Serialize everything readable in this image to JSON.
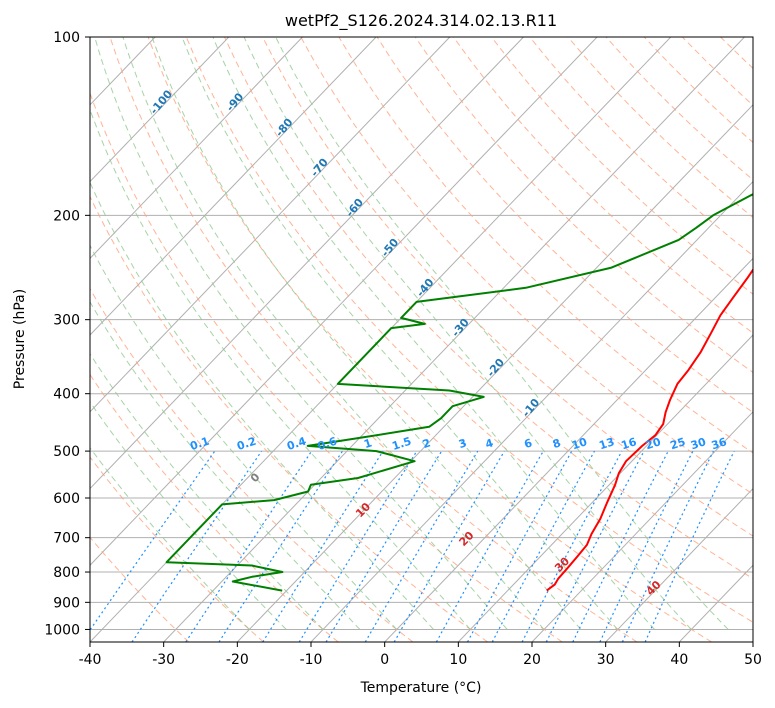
{
  "chart_data": {
    "type": "line",
    "title": "wetPf2_S126.2024.314.02.13.R11",
    "xlabel": "Temperature (°C)",
    "ylabel": "Pressure (hPa)",
    "xlim": [
      -40,
      50
    ],
    "ylim": [
      1050,
      100
    ],
    "y_scale": "log",
    "grid": true,
    "x_ticks": [
      "-40",
      "-30",
      "-20",
      "-10",
      "0",
      "10",
      "20",
      "30",
      "40",
      "50"
    ],
    "y_ticks": [
      "100",
      "200",
      "300",
      "400",
      "500",
      "600",
      "700",
      "800",
      "900",
      "1000"
    ],
    "series": [
      {
        "role": "temperature",
        "color": "#ff0000",
        "points": [
          [
            15.3,
            860
          ],
          [
            15.6,
            840
          ],
          [
            15.3,
            820
          ],
          [
            15.2,
            790
          ],
          [
            15.0,
            750
          ],
          [
            14.8,
            720
          ],
          [
            14.0,
            690
          ],
          [
            13.2,
            650
          ],
          [
            12.0,
            610
          ],
          [
            10.8,
            570
          ],
          [
            9.8,
            545
          ],
          [
            9.2,
            520
          ],
          [
            9.4,
            490
          ],
          [
            9.8,
            470
          ],
          [
            9.4,
            450
          ],
          [
            8.2,
            430
          ],
          [
            7.2,
            410
          ],
          [
            6.1,
            385
          ],
          [
            5.8,
            365
          ],
          [
            5.1,
            340
          ],
          [
            4.0,
            315
          ],
          [
            3.0,
            295
          ],
          [
            2.4,
            275
          ],
          [
            1.8,
            255
          ],
          [
            1.2,
            240
          ],
          [
            1.8,
            228
          ],
          [
            3.0,
            215
          ],
          [
            5.0,
            200
          ],
          [
            6.8,
            185
          ],
          [
            8.6,
            170
          ],
          [
            10.2,
            157
          ],
          [
            11.3,
            146
          ],
          [
            11.9,
            135
          ],
          [
            12.3,
            126
          ],
          [
            13.2,
            118
          ],
          [
            15.0,
            110
          ],
          [
            17.0,
            100
          ]
        ]
      },
      {
        "role": "dewpoint",
        "color": "#008000",
        "points": [
          [
            -20.6,
            860
          ],
          [
            -28.5,
            830
          ],
          [
            -26.5,
            815
          ],
          [
            -23.0,
            800
          ],
          [
            -28.0,
            780
          ],
          [
            -40.0,
            770
          ],
          [
            -40.0,
            615
          ],
          [
            -33.5,
            605
          ],
          [
            -30.0,
            585
          ],
          [
            -30.5,
            570
          ],
          [
            -25.0,
            555
          ],
          [
            -19.5,
            520
          ],
          [
            -26.0,
            500
          ],
          [
            -36.0,
            490
          ],
          [
            -30.0,
            475
          ],
          [
            -22.0,
            455
          ],
          [
            -21.5,
            440
          ],
          [
            -21.5,
            420
          ],
          [
            -18.5,
            405
          ],
          [
            -24.0,
            395
          ],
          [
            -40.0,
            385
          ],
          [
            -40.0,
            310
          ],
          [
            -36.0,
            305
          ],
          [
            -40.0,
            298
          ],
          [
            -40.0,
            280
          ],
          [
            -27.0,
            265
          ],
          [
            -18.0,
            245
          ],
          [
            -12.5,
            220
          ],
          [
            -11.7,
            210
          ],
          [
            -11.0,
            200
          ],
          [
            -8.5,
            185
          ],
          [
            -6.5,
            175
          ],
          [
            -5.8,
            165
          ],
          [
            -5.5,
            155
          ],
          [
            -4.0,
            145
          ],
          [
            -1.5,
            135
          ],
          [
            1.0,
            125
          ],
          [
            3.0,
            115
          ],
          [
            5.5,
            100
          ]
        ]
      }
    ],
    "isotherm_labels": [
      "-100",
      "-90",
      "-80",
      "-70",
      "-60",
      "-50",
      "-40",
      "-30",
      "-20",
      "-10"
    ],
    "mixing_ratio_labels": [
      "0.1",
      "0.2",
      "0.4",
      "0.6",
      "1",
      "1.5",
      "2",
      "3",
      "4",
      "6",
      "8",
      "10",
      "13",
      "16",
      "20",
      "25",
      "30",
      "36"
    ],
    "moist_adiabat_labels": [
      "0",
      "10",
      "20",
      "30",
      "40"
    ],
    "colors": {
      "temperature": "#ff0000",
      "dewpoint": "#008000",
      "isotherm": "#808080",
      "isotherm_label": "#1f77b4",
      "dry_adiabat": "#ffa07a",
      "moist_adiabat": "#90c890",
      "mixing_ratio": "#1e90ff",
      "moist_adiabat_label": "#d62728",
      "zero_label": "#808080"
    }
  }
}
